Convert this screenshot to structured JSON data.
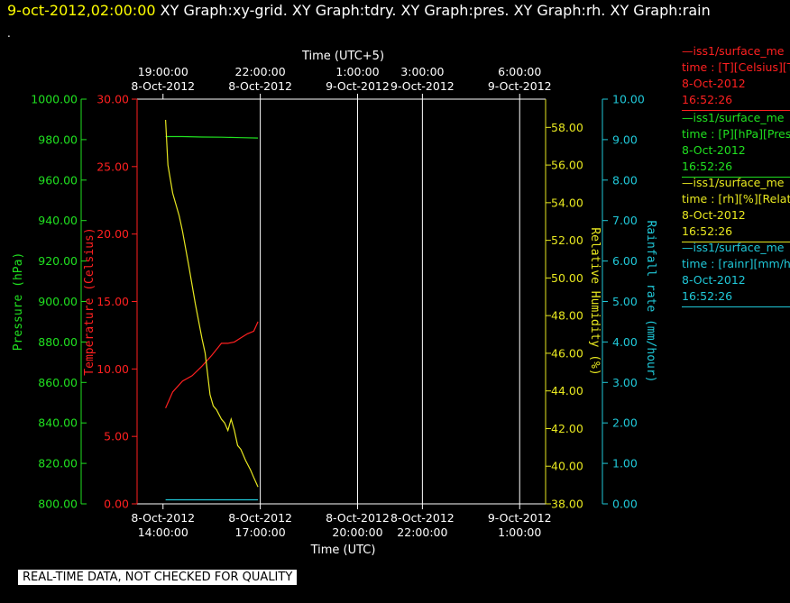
{
  "header": {
    "timestamp": "9-oct-2012,02:00:00",
    "graphs": [
      "XY Graph:xy-grid.",
      "XY Graph:tdry.",
      "XY Graph:pres.",
      "XY Graph:rh.",
      "XY Graph:rain"
    ],
    "dot": "."
  },
  "legend": [
    {
      "color": "#ff2020",
      "line1": "—iss1/surface_me",
      "line2": "time : [T][Celsius][T",
      "date": "8-Oct-2012",
      "time": "16:52:26"
    },
    {
      "color": "#20e020",
      "line1": "—iss1/surface_me",
      "line2": "time : [P][hPa][Pres",
      "date": "8-Oct-2012",
      "time": "16:52:26"
    },
    {
      "color": "#e8e820",
      "line1": "—iss1/surface_me",
      "line2": "time : [rh][%][Relati",
      "date": "8-Oct-2012",
      "time": "16:52:26"
    },
    {
      "color": "#20c8d8",
      "line1": "—iss1/surface_me",
      "line2": "time : [rainr][mm/ho",
      "date": "8-Oct-2012",
      "time": "16:52:26"
    }
  ],
  "disclaimer": "REAL-TIME DATA, NOT CHECKED FOR QUALITY",
  "chart_data": {
    "type": "line",
    "colors": {
      "temperature": "#ff2020",
      "pressure": "#20e020",
      "humidity": "#e8e820",
      "rain": "#20c8d8",
      "axes": "#ffffff"
    },
    "xlabel_bottom": "Time (UTC)",
    "xlabel_top": "Time (UTC+5)",
    "x_range_hours_utc": [
      13.2,
      25.8
    ],
    "x_ticks_bottom": [
      {
        "h": 14,
        "lines": [
          "8-Oct-2012",
          "14:00:00"
        ]
      },
      {
        "h": 17,
        "lines": [
          "8-Oct-2012",
          "17:00:00"
        ]
      },
      {
        "h": 20,
        "lines": [
          "8-Oct-2012",
          "20:00:00"
        ]
      },
      {
        "h": 22,
        "lines": [
          "8-Oct-2012",
          "22:00:00"
        ]
      },
      {
        "h": 25,
        "lines": [
          "9-Oct-2012",
          "1:00:00"
        ]
      }
    ],
    "x_ticks_top": [
      {
        "h": 14,
        "lines": [
          "19:00:00",
          "8-Oct-2012"
        ]
      },
      {
        "h": 17,
        "lines": [
          "22:00:00",
          "8-Oct-2012"
        ]
      },
      {
        "h": 20,
        "lines": [
          "1:00:00",
          "9-Oct-2012"
        ]
      },
      {
        "h": 22,
        "lines": [
          "3:00:00",
          "9-Oct-2012"
        ]
      },
      {
        "h": 25,
        "lines": [
          "6:00:00",
          "9-Oct-2012"
        ]
      }
    ],
    "grid_hours": [
      17,
      20,
      22,
      25
    ],
    "axes": {
      "pressure": {
        "label": "Pressure (hPa)",
        "range": [
          800,
          1000
        ],
        "ticks": [
          "800.00",
          "820.00",
          "840.00",
          "860.00",
          "880.00",
          "900.00",
          "920.00",
          "940.00",
          "960.00",
          "980.00",
          "1000.00"
        ]
      },
      "temperature": {
        "label": "Temperature (Celsius)",
        "range": [
          0,
          30
        ],
        "ticks": [
          "0.00",
          "5.00",
          "10.00",
          "15.00",
          "20.00",
          "25.00",
          "30.00"
        ]
      },
      "humidity": {
        "label": "Relative Humidity (%)",
        "range": [
          38,
          59.5
        ],
        "ticks": [
          "38.00",
          "40.00",
          "42.00",
          "44.00",
          "46.00",
          "48.00",
          "50.00",
          "52.00",
          "54.00",
          "56.00",
          "58.00"
        ]
      },
      "rain": {
        "label": "Rainfall rate (mm/hour)",
        "range": [
          0,
          10
        ],
        "ticks": [
          "0.00",
          "1.00",
          "2.00",
          "3.00",
          "4.00",
          "5.00",
          "6.00",
          "7.00",
          "8.00",
          "9.00",
          "10.00"
        ]
      }
    },
    "series": [
      {
        "key": "temperature",
        "name": "iss1/surface_me",
        "axis": "temperature",
        "x": [
          14.08,
          14.3,
          14.6,
          14.9,
          15.2,
          15.5,
          15.8,
          16.0,
          16.2,
          16.4,
          16.6,
          16.8,
          16.93
        ],
        "y": [
          7.1,
          8.3,
          9.1,
          9.5,
          10.2,
          11.0,
          11.9,
          11.9,
          12.0,
          12.3,
          12.6,
          12.8,
          13.5
        ]
      },
      {
        "key": "pressure",
        "name": "iss1/surface_me",
        "axis": "pressure",
        "x": [
          14.08,
          14.6,
          15.2,
          15.8,
          16.4,
          16.93
        ],
        "y": [
          981.5,
          981.5,
          981.3,
          981.2,
          981.0,
          980.8
        ]
      },
      {
        "key": "humidity",
        "name": "iss1/surface_me",
        "axis": "humidity",
        "x": [
          14.08,
          14.15,
          14.3,
          14.5,
          14.6,
          14.8,
          15.0,
          15.2,
          15.3,
          15.45,
          15.55,
          15.65,
          15.8,
          15.9,
          16.0,
          16.1,
          16.2,
          16.3,
          16.4,
          16.55,
          16.7,
          16.8,
          16.93
        ],
        "y": [
          58.4,
          56.0,
          54.5,
          53.3,
          52.5,
          50.6,
          48.6,
          46.8,
          46.0,
          43.8,
          43.2,
          43.0,
          42.5,
          42.3,
          41.9,
          42.5,
          41.9,
          41.1,
          40.9,
          40.3,
          39.8,
          39.4,
          38.9
        ]
      },
      {
        "key": "rain",
        "name": "iss1/surface_me",
        "axis": "rain",
        "x": [
          14.08,
          16.93
        ],
        "y": [
          0.1,
          0.1
        ]
      }
    ]
  }
}
